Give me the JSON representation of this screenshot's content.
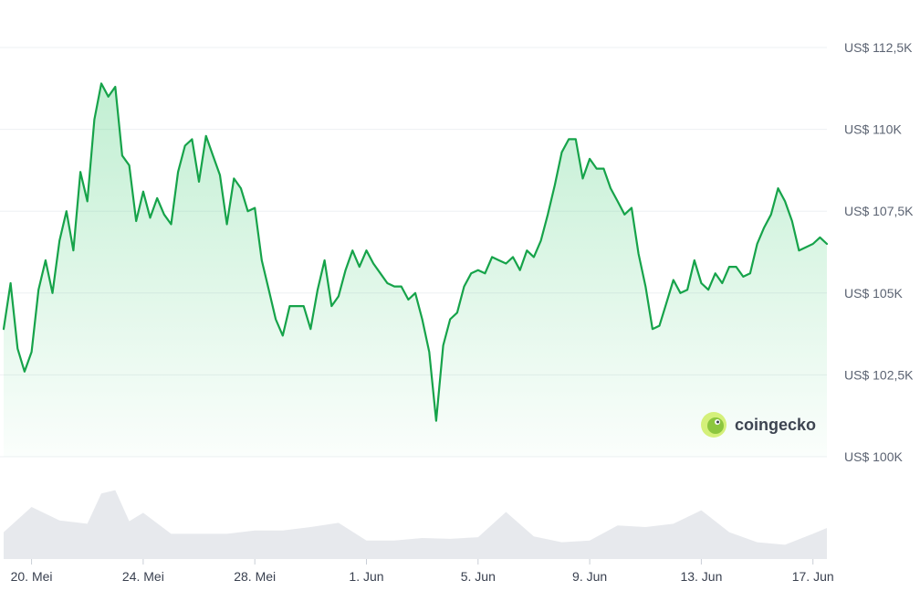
{
  "watermark": {
    "text": "coingecko"
  },
  "colors": {
    "line": "#16a34a",
    "area_top": "#22c55e",
    "volume": "#e7e9ed",
    "grid": "#eef0f3",
    "logo_outer": "#d4f07a",
    "logo_inner": "#8cc63f"
  },
  "chart_data": {
    "type": "area",
    "grid": true,
    "y_axis_position": "right",
    "ylim": [
      100000,
      112500
    ],
    "yticks": [
      100000,
      102500,
      105000,
      107500,
      110000,
      112500
    ],
    "ytick_labels": [
      "US$ 100K",
      "US$ 102,5K",
      "US$ 105K",
      "US$ 107,5K",
      "US$ 110K",
      "US$ 112,5K"
    ],
    "xlim": [
      "2025-05-19 00:00",
      "2025-06-17 12:00"
    ],
    "xticks": [
      "2025-05-20",
      "2025-05-24",
      "2025-05-28",
      "2025-06-01",
      "2025-06-05",
      "2025-06-09",
      "2025-06-13",
      "2025-06-17"
    ],
    "xtick_labels": [
      "20. Mei",
      "24. Mei",
      "28. Mei",
      "1. Jun",
      "5. Jun",
      "9. Jun",
      "13. Jun",
      "17. Jun"
    ],
    "series": [
      {
        "x": [
          "2025-05-19 00:00",
          "2025-05-19 06:00",
          "2025-05-19 12:00",
          "2025-05-19 18:00",
          "2025-05-20 00:00",
          "2025-05-20 06:00",
          "2025-05-20 12:00",
          "2025-05-20 18:00",
          "2025-05-21 00:00",
          "2025-05-21 06:00",
          "2025-05-21 12:00",
          "2025-05-21 18:00",
          "2025-05-22 00:00",
          "2025-05-22 06:00",
          "2025-05-22 12:00",
          "2025-05-22 18:00",
          "2025-05-23 00:00",
          "2025-05-23 06:00",
          "2025-05-23 12:00",
          "2025-05-23 18:00",
          "2025-05-24 00:00",
          "2025-05-24 06:00",
          "2025-05-24 12:00",
          "2025-05-24 18:00",
          "2025-05-25 00:00",
          "2025-05-25 06:00",
          "2025-05-25 12:00",
          "2025-05-25 18:00",
          "2025-05-26 00:00",
          "2025-05-26 06:00",
          "2025-05-26 12:00",
          "2025-05-26 18:00",
          "2025-05-27 00:00",
          "2025-05-27 06:00",
          "2025-05-27 12:00",
          "2025-05-27 18:00",
          "2025-05-28 00:00",
          "2025-05-28 06:00",
          "2025-05-28 12:00",
          "2025-05-28 18:00",
          "2025-05-29 00:00",
          "2025-05-29 06:00",
          "2025-05-29 12:00",
          "2025-05-29 18:00",
          "2025-05-30 00:00",
          "2025-05-30 06:00",
          "2025-05-30 12:00",
          "2025-05-30 18:00",
          "2025-05-31 00:00",
          "2025-05-31 06:00",
          "2025-05-31 12:00",
          "2025-05-31 18:00",
          "2025-06-01 00:00",
          "2025-06-01 06:00",
          "2025-06-01 12:00",
          "2025-06-01 18:00",
          "2025-06-02 00:00",
          "2025-06-02 06:00",
          "2025-06-02 12:00",
          "2025-06-02 18:00",
          "2025-06-03 00:00",
          "2025-06-03 06:00",
          "2025-06-03 12:00",
          "2025-06-03 18:00",
          "2025-06-04 00:00",
          "2025-06-04 06:00",
          "2025-06-04 12:00",
          "2025-06-04 18:00",
          "2025-06-05 00:00",
          "2025-06-05 06:00",
          "2025-06-05 12:00",
          "2025-06-05 18:00",
          "2025-06-06 00:00",
          "2025-06-06 06:00",
          "2025-06-06 12:00",
          "2025-06-06 18:00",
          "2025-06-07 00:00",
          "2025-06-07 06:00",
          "2025-06-07 12:00",
          "2025-06-07 18:00",
          "2025-06-08 00:00",
          "2025-06-08 06:00",
          "2025-06-08 12:00",
          "2025-06-08 18:00",
          "2025-06-09 00:00",
          "2025-06-09 06:00",
          "2025-06-09 12:00",
          "2025-06-09 18:00",
          "2025-06-10 00:00",
          "2025-06-10 06:00",
          "2025-06-10 12:00",
          "2025-06-10 18:00",
          "2025-06-11 00:00",
          "2025-06-11 06:00",
          "2025-06-11 12:00",
          "2025-06-11 18:00",
          "2025-06-12 00:00",
          "2025-06-12 06:00",
          "2025-06-12 12:00",
          "2025-06-12 18:00",
          "2025-06-13 00:00",
          "2025-06-13 06:00",
          "2025-06-13 12:00",
          "2025-06-13 18:00",
          "2025-06-14 00:00",
          "2025-06-14 06:00",
          "2025-06-14 12:00",
          "2025-06-14 18:00",
          "2025-06-15 00:00",
          "2025-06-15 06:00",
          "2025-06-15 12:00",
          "2025-06-15 18:00",
          "2025-06-16 00:00",
          "2025-06-16 06:00",
          "2025-06-16 12:00",
          "2025-06-16 18:00",
          "2025-06-17 00:00",
          "2025-06-17 06:00",
          "2025-06-17 12:00"
        ],
        "values": [
          103900,
          105300,
          103300,
          102600,
          103200,
          105100,
          106000,
          105000,
          106600,
          107500,
          106300,
          108700,
          107800,
          110300,
          111400,
          111000,
          111300,
          109200,
          108900,
          107200,
          108100,
          107300,
          107900,
          107400,
          107100,
          108700,
          109500,
          109700,
          108400,
          109800,
          109200,
          108600,
          107100,
          108500,
          108200,
          107500,
          107600,
          106000,
          105100,
          104200,
          103700,
          104600,
          104600,
          104600,
          103900,
          105100,
          106000,
          104600,
          104900,
          105700,
          106300,
          105800,
          106300,
          105900,
          105600,
          105300,
          105200,
          105200,
          104800,
          105000,
          104200,
          103200,
          101100,
          103400,
          104200,
          104400,
          105200,
          105600,
          105700,
          105600,
          106100,
          106000,
          105900,
          106100,
          105700,
          106300,
          106100,
          106600,
          107400,
          108300,
          109300,
          109700,
          109700,
          108500,
          109100,
          108800,
          108800,
          108200,
          107800,
          107400,
          107600,
          106200,
          105200,
          103900,
          104000,
          104700,
          105400,
          105000,
          105100,
          106000,
          105300,
          105100,
          105600,
          105300,
          105800,
          105800,
          105500,
          105600,
          106500,
          107000,
          107400,
          108200,
          107800,
          107200,
          106300,
          106400,
          106500,
          106700,
          106500
        ]
      }
    ],
    "volume_series": {
      "x": [
        "2025-05-19 00:00",
        "2025-05-20 00:00",
        "2025-05-21 00:00",
        "2025-05-22 00:00",
        "2025-05-22 12:00",
        "2025-05-23 00:00",
        "2025-05-23 12:00",
        "2025-05-24 00:00",
        "2025-05-25 00:00",
        "2025-05-26 00:00",
        "2025-05-27 00:00",
        "2025-05-28 00:00",
        "2025-05-29 00:00",
        "2025-05-30 00:00",
        "2025-05-31 00:00",
        "2025-06-01 00:00",
        "2025-06-02 00:00",
        "2025-06-03 00:00",
        "2025-06-04 00:00",
        "2025-06-05 00:00",
        "2025-06-06 00:00",
        "2025-06-07 00:00",
        "2025-06-08 00:00",
        "2025-06-09 00:00",
        "2025-06-10 00:00",
        "2025-06-11 00:00",
        "2025-06-12 00:00",
        "2025-06-13 00:00",
        "2025-06-14 00:00",
        "2025-06-15 00:00",
        "2025-06-16 00:00",
        "2025-06-17 00:00",
        "2025-06-17 12:00"
      ],
      "values": [
        0.32,
        0.62,
        0.46,
        0.42,
        0.78,
        0.82,
        0.45,
        0.55,
        0.3,
        0.3,
        0.3,
        0.34,
        0.34,
        0.38,
        0.43,
        0.22,
        0.22,
        0.25,
        0.24,
        0.26,
        0.56,
        0.27,
        0.2,
        0.22,
        0.4,
        0.38,
        0.42,
        0.58,
        0.32,
        0.2,
        0.17,
        0.3,
        0.37
      ],
      "max": 1.0
    }
  }
}
